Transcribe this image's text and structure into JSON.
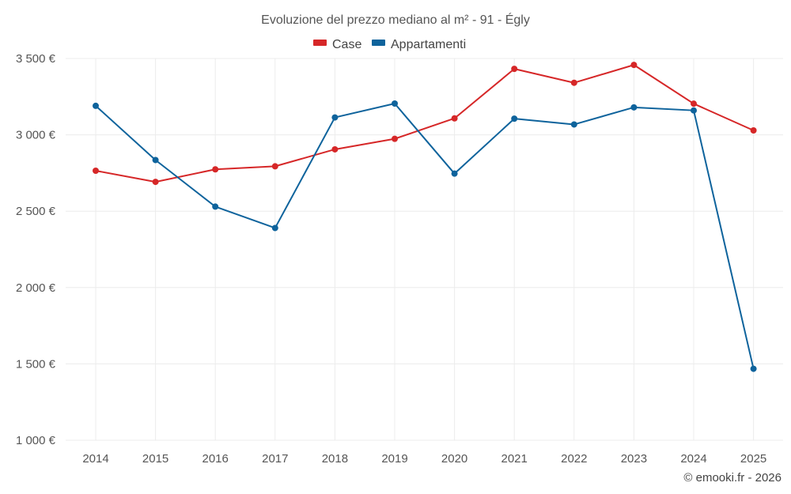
{
  "chart_data": {
    "type": "line",
    "title": "Evoluzione del prezzo mediano al m² - 91 - Égly",
    "categories": [
      "2014",
      "2015",
      "2016",
      "2017",
      "2018",
      "2019",
      "2020",
      "2021",
      "2022",
      "2023",
      "2024",
      "2025"
    ],
    "series": [
      {
        "name": "Case",
        "color": "#d62728",
        "values": [
          2765,
          2692,
          2774,
          2794,
          2905,
          2974,
          3108,
          3432,
          3341,
          3458,
          3204,
          3029
        ]
      },
      {
        "name": "Appartamenti",
        "color": "#0e639c",
        "values": [
          3190,
          2835,
          2530,
          2390,
          3114,
          3205,
          2746,
          3106,
          3068,
          3180,
          3160,
          1468
        ]
      }
    ],
    "yticks": [
      {
        "value": 1000,
        "label": "1 000 €"
      },
      {
        "value": 1500,
        "label": "1 500 €"
      },
      {
        "value": 2000,
        "label": "2 000 €"
      },
      {
        "value": 2500,
        "label": "2 500 €"
      },
      {
        "value": 3000,
        "label": "3 000 €"
      },
      {
        "value": 3500,
        "label": "3 500 €"
      }
    ],
    "ylim": [
      1000,
      3500
    ],
    "xlabel": "",
    "ylabel": "",
    "grid": true,
    "legend_position": "top-center"
  },
  "credit": "© emooki.fr - 2026"
}
